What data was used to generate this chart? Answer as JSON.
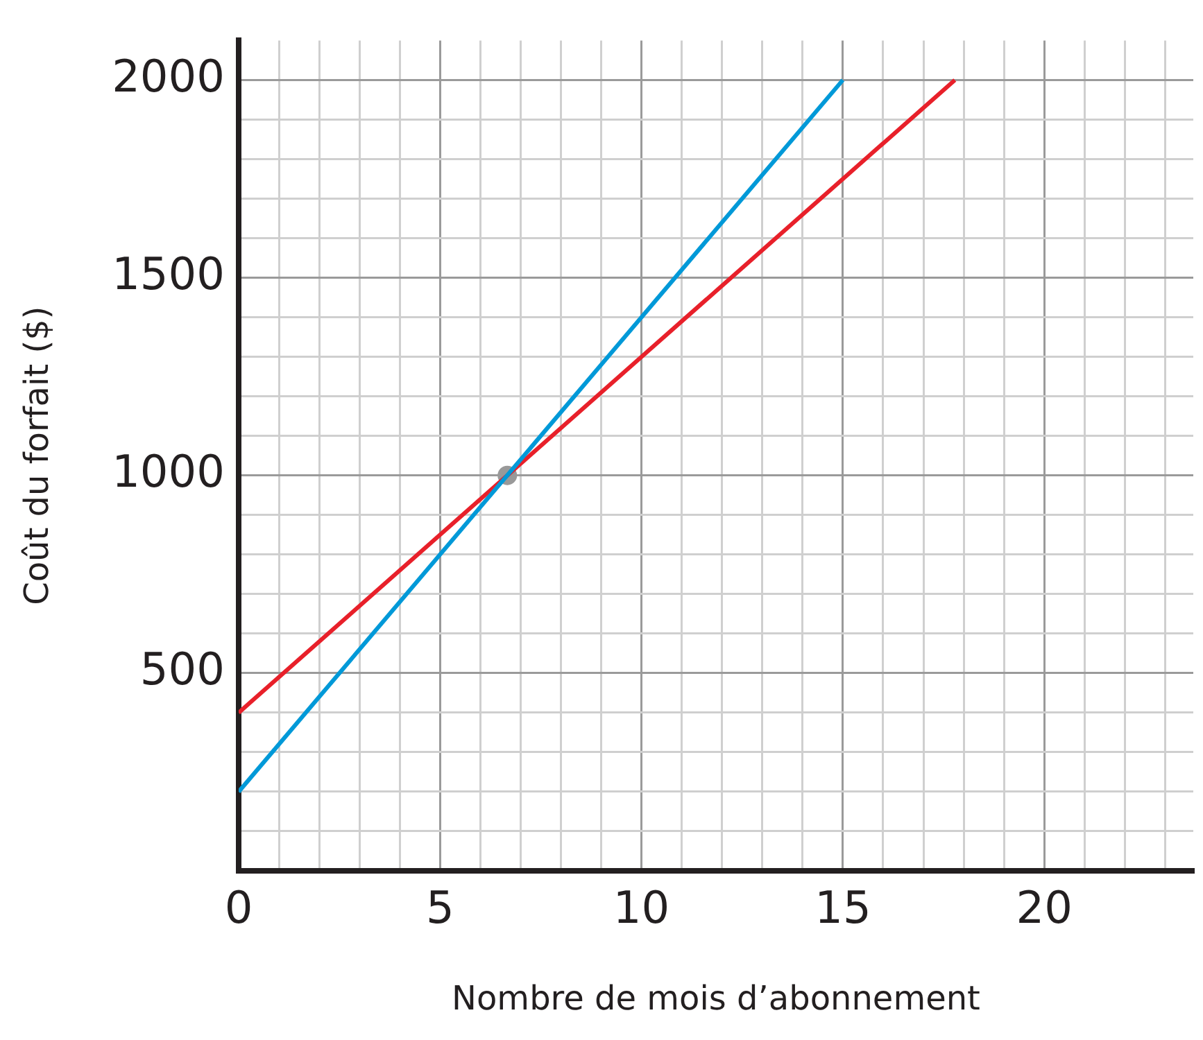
{
  "chart_data": {
    "type": "line",
    "xlabel": "Nombre de mois d’abonnement",
    "ylabel": "Coût du forfait ($)",
    "xlim": [
      0,
      23.7
    ],
    "ylim": [
      0,
      2100
    ],
    "xticks": [
      0,
      {
        "value": 1,
        "label": null
      },
      {
        "value": 2,
        "label": null
      },
      {
        "value": 3,
        "label": null
      },
      {
        "value": 4,
        "label": null
      },
      5,
      {
        "value": 6,
        "label": null
      },
      {
        "value": 7,
        "label": null
      },
      {
        "value": 8,
        "label": null
      },
      {
        "value": 9,
        "label": null
      },
      10,
      {
        "value": 11,
        "label": null
      },
      {
        "value": 12,
        "label": null
      },
      {
        "value": 13,
        "label": null
      },
      {
        "value": 14,
        "label": null
      },
      15,
      {
        "value": 16,
        "label": null
      },
      {
        "value": 17,
        "label": null
      },
      {
        "value": 18,
        "label": null
      },
      {
        "value": 19,
        "label": null
      },
      20,
      {
        "value": 21,
        "label": null
      },
      {
        "value": 22,
        "label": null
      },
      {
        "value": 23,
        "label": null
      }
    ],
    "yticks": [
      {
        "value": 100,
        "label": null
      },
      {
        "value": 200,
        "label": null
      },
      {
        "value": 300,
        "label": null
      },
      {
        "value": 400,
        "label": null
      },
      500,
      {
        "value": 600,
        "label": null
      },
      {
        "value": 700,
        "label": null
      },
      {
        "value": 800,
        "label": null
      },
      {
        "value": 900,
        "label": null
      },
      1000,
      {
        "value": 1100,
        "label": null
      },
      {
        "value": 1200,
        "label": null
      },
      {
        "value": 1300,
        "label": null
      },
      {
        "value": 1400,
        "label": null
      },
      1500,
      {
        "value": 1600,
        "label": null
      },
      {
        "value": 1700,
        "label": null
      },
      {
        "value": 1800,
        "label": null
      },
      {
        "value": 1900,
        "label": null
      },
      2000
    ],
    "grid": true,
    "legend": false,
    "marker": "none",
    "line_style": "solid",
    "series": [
      {
        "color": "#0099d8",
        "x": [
          0,
          15
        ],
        "values": [
          200,
          2000
        ]
      },
      {
        "color": "#e8202a",
        "x": [
          0,
          17.78
        ],
        "values": [
          400,
          2000
        ]
      },
      {
        "type": "scatter",
        "marker": "circle",
        "color": "#999999",
        "x": [
          6.67
        ],
        "values": [
          1000
        ]
      }
    ]
  }
}
